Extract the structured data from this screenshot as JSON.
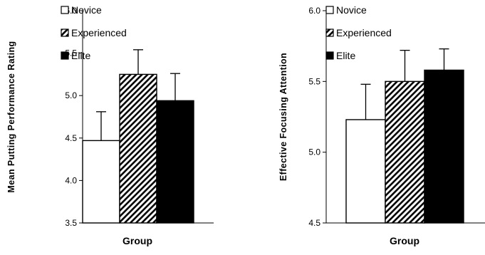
{
  "chart_data": [
    {
      "type": "bar",
      "xlabel": "Group",
      "ylabel": "Mean Putting Performance Rating",
      "ylim": [
        3.5,
        6.0
      ],
      "yticks": [
        "3.5",
        "4.0",
        "4.5",
        "5.0",
        "5.5",
        "6.0"
      ],
      "ytick_values": [
        3.5,
        4.0,
        4.5,
        5.0,
        5.5,
        6.0
      ],
      "grid": false,
      "legend_position": "top-left",
      "series": [
        {
          "name": "Novice",
          "value": 4.47,
          "error": 0.34,
          "fill": "white"
        },
        {
          "name": "Experienced",
          "value": 5.25,
          "error": 0.29,
          "fill": "diagonal-hatch"
        },
        {
          "name": "Elite",
          "value": 4.94,
          "error": 0.32,
          "fill": "black"
        }
      ]
    },
    {
      "type": "bar",
      "xlabel": "Group",
      "ylabel": "Effective Focusing Attention",
      "ylim": [
        4.5,
        6.0
      ],
      "yticks": [
        "4.5",
        "5.0",
        "5.5",
        "6.0"
      ],
      "ytick_values": [
        4.5,
        5.0,
        5.5,
        6.0
      ],
      "grid": false,
      "legend_position": "top-left",
      "series": [
        {
          "name": "Novice",
          "value": 5.23,
          "error": 0.25,
          "fill": "white"
        },
        {
          "name": "Experienced",
          "value": 5.5,
          "error": 0.22,
          "fill": "diagonal-hatch"
        },
        {
          "name": "Elite",
          "value": 5.58,
          "error": 0.15,
          "fill": "black"
        }
      ]
    }
  ]
}
